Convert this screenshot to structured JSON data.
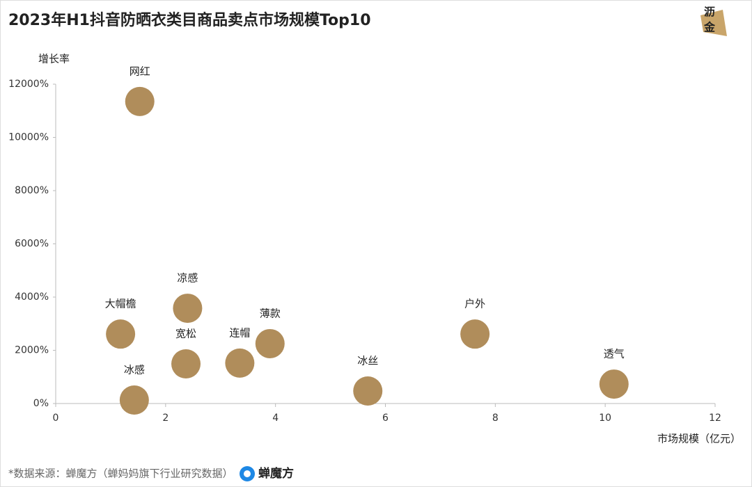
{
  "chart_data": {
    "type": "scatter",
    "title": "2023年H1抖音防晒衣类目商品卖点市场规模Top10",
    "y_label": "增长率",
    "x_label": "市场规模（亿元）",
    "source": "*数据来源：蝉魔方（蝉妈妈旗下行业研究数据）",
    "brand": "蝉魔方",
    "watermark": [
      "沥",
      "金"
    ],
    "color": "#b08d5b",
    "labels": [
      "网红",
      "凉感",
      "大帽檐",
      "宽松",
      "冰感",
      "连帽",
      "薄款",
      "冰丝",
      "户外",
      "透气"
    ],
    "x": [
      1.53,
      2.4,
      1.18,
      2.37,
      1.43,
      3.35,
      3.9,
      5.68,
      7.63,
      10.16
    ],
    "values": [
      11350,
      3580,
      2610,
      1490,
      130,
      1520,
      2250,
      470,
      2610,
      730
    ],
    "xlim": [
      0,
      12
    ],
    "xticks": [
      0,
      2,
      4,
      6,
      8,
      10,
      12
    ],
    "ylim": [
      0,
      12000
    ],
    "yticks": [
      {
        "value": 0,
        "label": "0%"
      },
      {
        "value": 2000,
        "label": "2000%"
      },
      {
        "value": 4000,
        "label": "4000%"
      },
      {
        "value": 6000,
        "label": "6000%"
      },
      {
        "value": 8000,
        "label": "8000%"
      },
      {
        "value": 10000,
        "label": "10000%"
      },
      {
        "value": 12000,
        "label": "12000%"
      }
    ]
  }
}
